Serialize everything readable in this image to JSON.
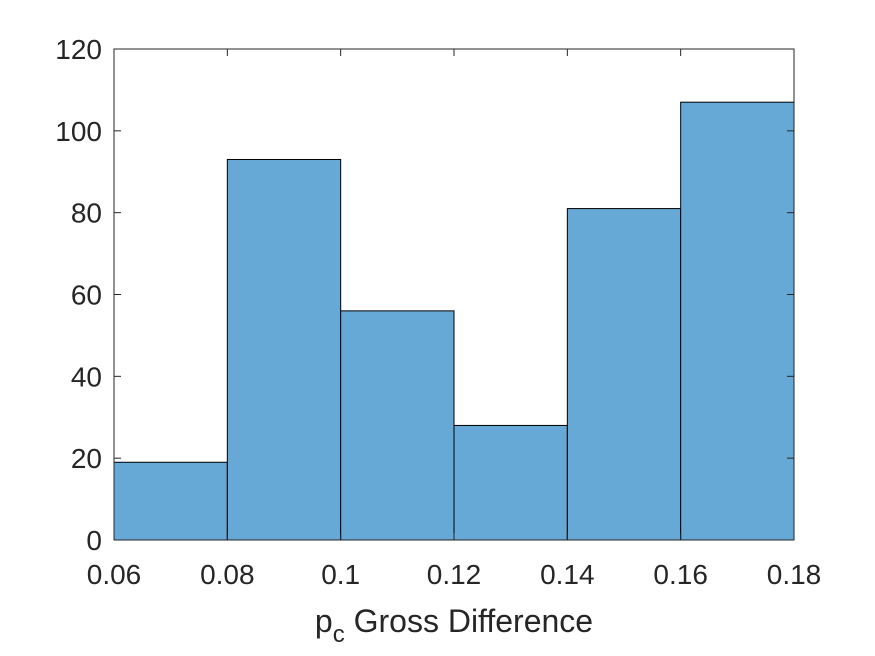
{
  "chart_data": {
    "type": "bar",
    "subtype": "histogram",
    "bin_edges": [
      0.06,
      0.08,
      0.1,
      0.12,
      0.14,
      0.16,
      0.18
    ],
    "values": [
      19,
      93,
      56,
      28,
      81,
      107
    ],
    "xlabel_main": "p",
    "xlabel_sub": "c",
    "xlabel_rest": " Gross Difference",
    "ylabel": "",
    "title": "",
    "xlim": [
      0.06,
      0.18
    ],
    "ylim": [
      0,
      120
    ],
    "xticks": [
      0.06,
      0.08,
      0.1,
      0.12,
      0.14,
      0.16,
      0.18
    ],
    "xtick_labels": [
      "0.06",
      "0.08",
      "0.1",
      "0.12",
      "0.14",
      "0.16",
      "0.18"
    ],
    "yticks": [
      0,
      20,
      40,
      60,
      80,
      100,
      120
    ],
    "ytick_labels": [
      "0",
      "20",
      "40",
      "60",
      "80",
      "100",
      "120"
    ],
    "bar_color": "#66a8d6",
    "edge_color": "#000000",
    "grid": false,
    "legend": "none"
  }
}
